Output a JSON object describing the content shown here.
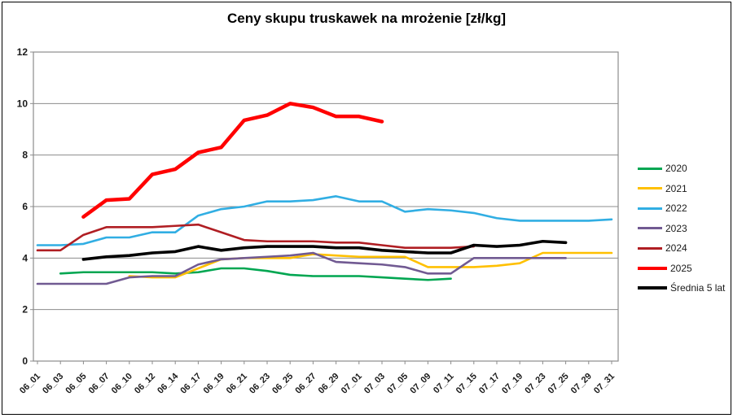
{
  "chart_data": {
    "type": "line",
    "title": "Ceny skupu truskawek na mrożenie [zł/kg]",
    "xlabel": "",
    "ylabel": "",
    "ylim": [
      0,
      12
    ],
    "y_ticks": [
      0,
      2,
      4,
      6,
      8,
      10,
      12
    ],
    "grid": "horizontal",
    "legend_position": "right",
    "categories": [
      "06_01",
      "06_03",
      "06_05",
      "06_07",
      "06_10",
      "06_12",
      "06_14",
      "06_17",
      "06_19",
      "06_21",
      "06_23",
      "06_25",
      "06_27",
      "06_29",
      "07_01",
      "07_03",
      "07_05",
      "07_09",
      "07_11",
      "07_15",
      "07_17",
      "07_19",
      "07_23",
      "07_25",
      "07_29",
      "07_31"
    ],
    "series": [
      {
        "name": "2020",
        "color": "#00A651",
        "width": 2.6,
        "values": [
          null,
          3.4,
          3.45,
          3.45,
          3.45,
          3.45,
          3.4,
          3.45,
          3.6,
          3.6,
          3.5,
          3.35,
          3.3,
          3.3,
          3.3,
          3.25,
          3.2,
          3.15,
          3.2,
          null,
          null,
          null,
          null,
          null,
          null,
          null
        ]
      },
      {
        "name": "2021",
        "color": "#FFC000",
        "width": 2.6,
        "values": [
          null,
          null,
          null,
          null,
          3.3,
          3.25,
          3.25,
          3.6,
          3.95,
          4.0,
          4.0,
          4.0,
          4.15,
          4.1,
          4.05,
          4.05,
          4.05,
          3.65,
          3.65,
          3.65,
          3.7,
          3.8,
          4.2,
          4.2,
          4.2,
          4.2
        ]
      },
      {
        "name": "2022",
        "color": "#31AEE3",
        "width": 2.6,
        "values": [
          4.5,
          4.5,
          4.55,
          4.8,
          4.8,
          5.0,
          5.0,
          5.65,
          5.9,
          6.0,
          6.2,
          6.2,
          6.25,
          6.4,
          6.2,
          6.2,
          5.8,
          5.9,
          5.85,
          5.75,
          5.55,
          5.45,
          5.45,
          5.45,
          5.45,
          5.5
        ]
      },
      {
        "name": "2023",
        "color": "#715A92",
        "width": 2.6,
        "values": [
          3.0,
          3.0,
          3.0,
          3.0,
          3.25,
          3.3,
          3.3,
          3.75,
          3.95,
          4.0,
          4.05,
          4.1,
          4.2,
          3.85,
          3.8,
          3.75,
          3.65,
          3.4,
          3.4,
          4.0,
          4.0,
          4.0,
          4.0,
          4.0,
          null,
          null
        ]
      },
      {
        "name": "2024",
        "color": "#B01E23",
        "width": 2.6,
        "values": [
          4.3,
          4.3,
          4.9,
          5.2,
          5.2,
          5.2,
          5.25,
          5.3,
          5.0,
          4.7,
          4.65,
          4.65,
          4.65,
          4.6,
          4.6,
          4.5,
          4.4,
          4.4,
          4.4,
          4.45,
          null,
          null,
          null,
          null,
          null,
          null
        ]
      },
      {
        "name": "2025",
        "color": "#FF0000",
        "width": 4.5,
        "values": [
          null,
          null,
          5.6,
          6.25,
          6.3,
          7.25,
          7.45,
          8.1,
          8.3,
          9.35,
          9.55,
          10.0,
          9.85,
          9.5,
          9.5,
          9.3,
          null,
          null,
          null,
          null,
          null,
          null,
          null,
          null,
          null,
          null
        ]
      },
      {
        "name": "Średnia 5 lat",
        "color": "#000000",
        "width": 3.6,
        "values": [
          null,
          null,
          3.95,
          4.05,
          4.1,
          4.2,
          4.25,
          4.45,
          4.3,
          4.4,
          4.45,
          4.45,
          4.45,
          4.4,
          4.4,
          4.3,
          4.25,
          4.2,
          4.2,
          4.5,
          4.45,
          4.5,
          4.65,
          4.6,
          null,
          null
        ]
      }
    ],
    "colors": {
      "grid": "#8C8C8C",
      "frame": "#8C8C8C",
      "tick_text": "#1a1a1a"
    }
  }
}
